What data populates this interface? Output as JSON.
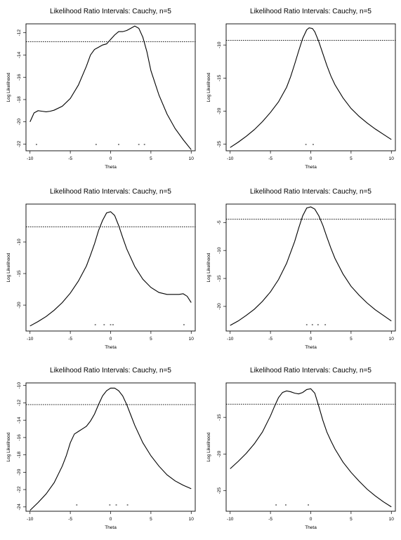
{
  "chart_data": [
    {
      "type": "line",
      "title": "Likelihood Ratio Intervals: Cauchy, n=5",
      "xlabel": "Theta",
      "ylabel": "Log Likelihood",
      "xlim": [
        -10.5,
        10.5
      ],
      "ylim": [
        -22.6,
        -11.2
      ],
      "xticks": [
        -10,
        -5,
        0,
        5,
        10
      ],
      "yticks": [
        -22,
        -20,
        -18,
        -16,
        -14,
        -12
      ],
      "cutoff": -12.8,
      "observations": [
        -9.2,
        -1.8,
        1.0,
        3.5,
        4.2
      ],
      "series": [
        {
          "x": [
            -10,
            -9.5,
            -9,
            -8.5,
            -8,
            -7.5,
            -7,
            -6,
            -5,
            -4,
            -3,
            -2.5,
            -2,
            -1.5,
            -1,
            -0.5,
            0,
            0.5,
            1,
            1.5,
            2,
            2.5,
            3,
            3.5,
            4,
            4.5,
            5,
            6,
            7,
            8,
            9,
            10
          ],
          "y": [
            -20.0,
            -19.2,
            -19.0,
            -19.05,
            -19.1,
            -19.05,
            -18.95,
            -18.6,
            -17.9,
            -16.7,
            -15.0,
            -14.0,
            -13.5,
            -13.3,
            -13.1,
            -13.0,
            -12.6,
            -12.2,
            -11.9,
            -11.9,
            -11.8,
            -11.6,
            -11.4,
            -11.6,
            -12.4,
            -13.7,
            -15.4,
            -17.6,
            -19.3,
            -20.6,
            -21.6,
            -22.5
          ]
        }
      ]
    },
    {
      "type": "line",
      "title": "Likelihood Ratio Intervals: Cauchy, n=5",
      "xlabel": "Theta",
      "ylabel": "Log Likelihood",
      "xlim": [
        -10.5,
        10.5
      ],
      "ylim": [
        -26.0,
        -6.8
      ],
      "xticks": [
        -10,
        -5,
        0,
        5,
        10
      ],
      "yticks": [
        -25,
        -20,
        -15,
        -10
      ],
      "cutoff": -9.3,
      "observations": [
        -0.6,
        0.3
      ],
      "series": [
        {
          "x": [
            -10,
            -9,
            -8,
            -7,
            -6,
            -5,
            -4,
            -3,
            -2.5,
            -2,
            -1.5,
            -1,
            -0.5,
            -0.2,
            0.2,
            0.5,
            1,
            1.5,
            2,
            2.5,
            3,
            4,
            5,
            6,
            7,
            8,
            9,
            10
          ],
          "y": [
            -25.5,
            -24.7,
            -23.8,
            -22.8,
            -21.6,
            -20.2,
            -18.6,
            -16.4,
            -14.8,
            -12.9,
            -10.9,
            -9.0,
            -7.7,
            -7.4,
            -7.5,
            -8.0,
            -9.5,
            -11.3,
            -13.1,
            -14.7,
            -16.0,
            -18.0,
            -19.6,
            -20.8,
            -21.8,
            -22.7,
            -23.5,
            -24.3
          ]
        }
      ]
    },
    {
      "type": "line",
      "title": "Likelihood Ratio Intervals: Cauchy, n=5",
      "xlabel": "Theta",
      "ylabel": "Log Likelihood",
      "xlim": [
        -10.5,
        10.5
      ],
      "ylim": [
        -24.1,
        -4.0
      ],
      "xticks": [
        -10,
        -5,
        0,
        5,
        10
      ],
      "yticks": [
        -20,
        -15,
        -10
      ],
      "cutoff": -7.6,
      "observations": [
        -1.9,
        -0.8,
        0.0,
        0.3,
        9.1
      ],
      "series": [
        {
          "x": [
            -10,
            -9,
            -8,
            -7,
            -6,
            -5,
            -4,
            -3,
            -2.5,
            -2,
            -1.5,
            -1,
            -0.5,
            0,
            0.5,
            1,
            1.5,
            2,
            3,
            4,
            5,
            6,
            7,
            8,
            8.5,
            9,
            9.5,
            10
          ],
          "y": [
            -23.3,
            -22.6,
            -21.8,
            -20.8,
            -19.6,
            -18.1,
            -16.2,
            -13.8,
            -12.1,
            -10.3,
            -8.2,
            -6.6,
            -5.4,
            -5.2,
            -5.8,
            -7.4,
            -9.3,
            -11.1,
            -13.9,
            -15.9,
            -17.2,
            -18.0,
            -18.3,
            -18.3,
            -18.3,
            -18.2,
            -18.6,
            -19.6
          ]
        }
      ]
    },
    {
      "type": "line",
      "title": "Likelihood Ratio Intervals: Cauchy, n=5",
      "xlabel": "Theta",
      "ylabel": "Log Likelihood",
      "xlim": [
        -10.5,
        10.5
      ],
      "ylim": [
        -24.4,
        -1.7
      ],
      "xticks": [
        -10,
        -5,
        0,
        5,
        10
      ],
      "yticks": [
        -20,
        -15,
        -10,
        -5
      ],
      "cutoff": -4.4,
      "observations": [
        -0.5,
        0.2,
        0.9,
        1.8
      ],
      "series": [
        {
          "x": [
            -10,
            -9,
            -8,
            -7,
            -6,
            -5,
            -4,
            -3,
            -2,
            -1.5,
            -1,
            -0.5,
            0,
            0.5,
            1,
            1.5,
            2,
            2.5,
            3,
            4,
            5,
            6,
            7,
            8,
            9,
            10
          ],
          "y": [
            -23.4,
            -22.6,
            -21.6,
            -20.5,
            -19.1,
            -17.4,
            -15.2,
            -12.3,
            -8.4,
            -6.0,
            -3.8,
            -2.4,
            -2.2,
            -2.6,
            -3.8,
            -5.5,
            -7.6,
            -9.6,
            -11.4,
            -14.2,
            -16.4,
            -18.0,
            -19.4,
            -20.6,
            -21.6,
            -22.6
          ]
        }
      ]
    },
    {
      "type": "line",
      "title": "Likelihood Ratio Intervals: Cauchy, n=5",
      "xlabel": "Theta",
      "ylabel": "Log Likelihood",
      "xlim": [
        -10.5,
        10.5
      ],
      "ylim": [
        -24.5,
        -9.7
      ],
      "xticks": [
        -10,
        -5,
        0,
        5,
        10
      ],
      "yticks": [
        -24,
        -22,
        -20,
        -18,
        -16,
        -14,
        -12,
        -10
      ],
      "cutoff": -12.2,
      "observations": [
        -4.2,
        -0.1,
        0.7,
        2.1
      ],
      "series": [
        {
          "x": [
            -10,
            -9,
            -8,
            -7,
            -6,
            -5.5,
            -5,
            -4.5,
            -4,
            -3.5,
            -3,
            -2.5,
            -2,
            -1.5,
            -1,
            -0.5,
            0,
            0.5,
            1,
            1.5,
            2,
            2.5,
            3,
            4,
            5,
            6,
            7,
            8,
            9,
            10
          ],
          "y": [
            -24.4,
            -23.5,
            -22.5,
            -21.2,
            -19.3,
            -18.1,
            -16.6,
            -15.6,
            -15.3,
            -15.0,
            -14.7,
            -14.1,
            -13.3,
            -12.2,
            -11.2,
            -10.6,
            -10.3,
            -10.3,
            -10.6,
            -11.2,
            -12.2,
            -13.4,
            -14.6,
            -16.6,
            -18.1,
            -19.3,
            -20.3,
            -21.0,
            -21.5,
            -21.9
          ]
        }
      ]
    },
    {
      "type": "line",
      "title": "Likelihood Ratio Intervals: Cauchy, n=5",
      "xlabel": "Theta",
      "ylabel": "Log Likelihood",
      "xlim": [
        -10.5,
        10.5
      ],
      "ylim": [
        -27.8,
        -10.3
      ],
      "xticks": [
        -10,
        -5,
        0,
        5,
        10
      ],
      "yticks": [
        -25,
        -20,
        -15
      ],
      "cutoff": -13.2,
      "observations": [
        -4.3,
        -3.1,
        -0.3
      ],
      "series": [
        {
          "x": [
            -10,
            -9,
            -8,
            -7,
            -6,
            -5,
            -4.5,
            -4,
            -3.5,
            -3,
            -2.5,
            -2,
            -1.5,
            -1,
            -0.5,
            0,
            0.5,
            1,
            1.5,
            2,
            2.5,
            3,
            4,
            5,
            6,
            7,
            8,
            9,
            10
          ],
          "y": [
            -22.0,
            -21.0,
            -19.9,
            -18.6,
            -17.0,
            -14.8,
            -13.5,
            -12.3,
            -11.6,
            -11.4,
            -11.5,
            -11.7,
            -11.8,
            -11.6,
            -11.2,
            -11.1,
            -11.7,
            -13.5,
            -15.4,
            -17.0,
            -18.2,
            -19.3,
            -21.1,
            -22.5,
            -23.7,
            -24.8,
            -25.7,
            -26.5,
            -27.2
          ]
        }
      ]
    }
  ]
}
